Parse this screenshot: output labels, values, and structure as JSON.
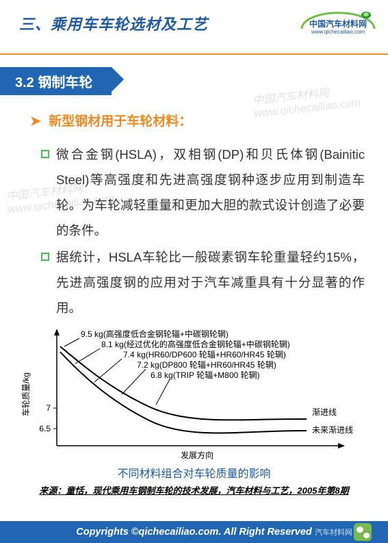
{
  "header": {
    "title": "三、乘用车车轮选材及工艺",
    "logo_main": "中国汽车材料网",
    "logo_sub": "www.qichecailiao.com"
  },
  "subheader": "3.2 钢制车轮",
  "bullet_title": "新型钢材用于车轮材料：",
  "items": [
    "微合金钢(HSLA)，双相钢(DP)和贝氏体钢(Bainitic Steel)等高强度和先进高强度钢种逐步应用到制造车轮。为车轮减轻重量和更加大胆的款式设计创造了必要的条件。",
    "据统计，HSLA车轮比一般碳素钢车轮重量轻约15%，先进高强度钢的应用对于汽车减重具有十分显著的作用。"
  ],
  "chart": {
    "type": "line",
    "y_label": "车轮质量/kg",
    "x_label": "发展方向",
    "ylim": [
      6.0,
      10.0
    ],
    "yticks": [
      6.5,
      7.0
    ],
    "background_color": "#ffffff",
    "axis_color": "#000000",
    "annotations": [
      {
        "weight": "9.5 kg",
        "desc": "(高强度低合金钢轮辐+中碳钢轮辋)"
      },
      {
        "weight": "8.1 kg",
        "desc": "(经过优化的高强度低合金钢轮辐+中碳钢轮辋)"
      },
      {
        "weight": "7.4 kg",
        "desc": "(HR60/DP600 轮辐+HR60/HR45 轮辋)"
      },
      {
        "weight": "7.2 kg",
        "desc": "(DP800 轮辐+HR60/HR45 轮辋)"
      },
      {
        "weight": "6.8 kg",
        "desc": "(TRIP 轮辐+M800 轮辋)"
      }
    ],
    "curve_labels": [
      "渐进线",
      "未来渐进线"
    ],
    "curves": [
      {
        "color": "#000000",
        "width": 2,
        "points": [
          [
            0,
            9.5
          ],
          [
            40,
            8.6
          ],
          [
            90,
            7.8
          ],
          [
            160,
            7.2
          ],
          [
            240,
            6.9
          ],
          [
            320,
            6.85
          ]
        ]
      },
      {
        "color": "#000000",
        "width": 2,
        "points": [
          [
            0,
            9.3
          ],
          [
            40,
            8.2
          ],
          [
            90,
            7.4
          ],
          [
            160,
            6.8
          ],
          [
            240,
            6.55
          ],
          [
            320,
            6.5
          ]
        ]
      }
    ],
    "caption": "不同材料组合对车轮质量的影响"
  },
  "source": "来源：童恬，现代乘用车钢制车轮的技术发展，汽车材料与工艺，2005年第8期",
  "footer": "Copyrights ©qichecailiao.com. All Right Reserved",
  "wechat_label": "汽车材料网",
  "watermark": "中国汽车材料网\nwww.qichecailiao.com",
  "colors": {
    "header_blue": "#1e5aa0",
    "bar_blue": "#2166b3",
    "orange": "#f08a1f",
    "green": "#4db84d",
    "text": "#333333"
  }
}
